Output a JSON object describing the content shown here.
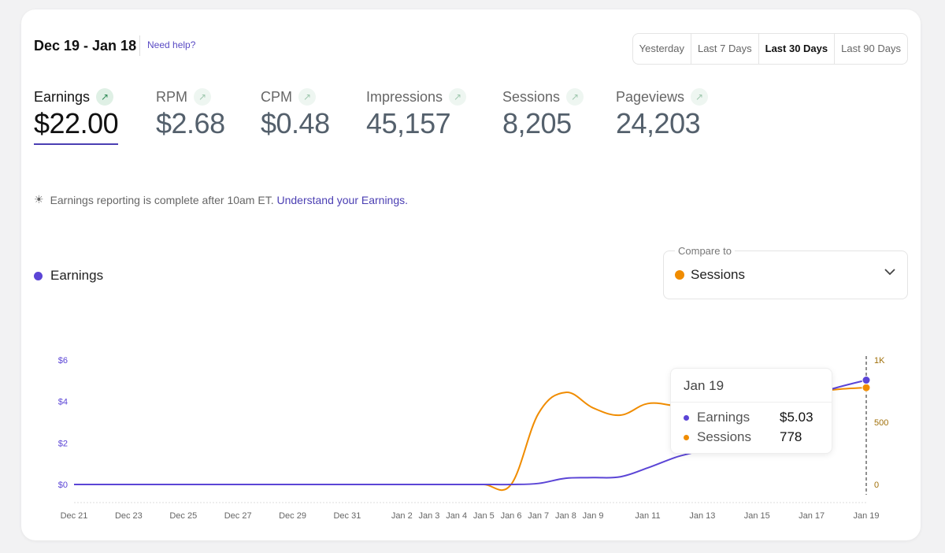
{
  "header": {
    "date_range": "Dec 19 - Jan 18",
    "help_link": "Need help?"
  },
  "periods": [
    {
      "label": "Yesterday",
      "active": false
    },
    {
      "label": "Last 7 Days",
      "active": false
    },
    {
      "label": "Last 30 Days",
      "active": true
    },
    {
      "label": "Last 90 Days",
      "active": false
    }
  ],
  "metrics": [
    {
      "label": "Earnings",
      "value": "$22.00",
      "active": true
    },
    {
      "label": "RPM",
      "value": "$2.68",
      "active": false
    },
    {
      "label": "CPM",
      "value": "$0.48",
      "active": false
    },
    {
      "label": "Impressions",
      "value": "45,157",
      "active": false
    },
    {
      "label": "Sessions",
      "value": "8,205",
      "active": false
    },
    {
      "label": "Pageviews",
      "value": "24,203",
      "active": false
    }
  ],
  "note": {
    "text": "Earnings reporting is complete after 10am ET.",
    "link": "Understand your Earnings."
  },
  "legend": {
    "label": "Earnings"
  },
  "compare": {
    "label": "Compare to",
    "value": "Sessions"
  },
  "colors": {
    "earnings": "#5b45d6",
    "sessions": "#f08c00",
    "accent": "#4b3fb3"
  },
  "tooltip": {
    "date": "Jan 19",
    "rows": [
      {
        "label": "Earnings",
        "value": "$5.03"
      },
      {
        "label": "Sessions",
        "value": "778"
      }
    ]
  },
  "chart_data": {
    "type": "line",
    "x": [
      "Dec 21",
      "Dec 22",
      "Dec 23",
      "Dec 24",
      "Dec 25",
      "Dec 26",
      "Dec 27",
      "Dec 28",
      "Dec 29",
      "Dec 30",
      "Dec 31",
      "Jan 1",
      "Jan 2",
      "Jan 3",
      "Jan 4",
      "Jan 5",
      "Jan 6",
      "Jan 7",
      "Jan 8",
      "Jan 9",
      "Jan 10",
      "Jan 11",
      "Jan 12",
      "Jan 13",
      "Jan 14",
      "Jan 15",
      "Jan 16",
      "Jan 17",
      "Jan 18",
      "Jan 19"
    ],
    "x_tick_labels": [
      "Dec 21",
      "Dec 23",
      "Dec 25",
      "Dec 27",
      "Dec 29",
      "Dec 31",
      "Jan 2",
      "Jan 3",
      "Jan 4",
      "Jan 5",
      "Jan 6",
      "Jan 7",
      "Jan 8",
      "Jan 9",
      "Jan 11",
      "Jan 13",
      "Jan 15",
      "Jan 17",
      "Jan 19"
    ],
    "y_left": {
      "ticks": [
        "$0",
        "$2",
        "$4",
        "$6"
      ],
      "range": [
        0,
        6
      ]
    },
    "y_right": {
      "ticks": [
        "0",
        "500",
        "1K"
      ],
      "range": [
        0,
        1000
      ]
    },
    "series": [
      {
        "name": "Earnings",
        "axis": "left",
        "values": [
          0,
          0,
          0,
          0,
          0,
          0,
          0,
          0,
          0,
          0,
          0,
          0,
          0,
          0,
          0,
          0,
          0,
          0.05,
          0.3,
          0.33,
          0.37,
          0.8,
          1.3,
          1.7,
          2.5,
          3.2,
          3.8,
          4.3,
          4.7,
          5.03
        ]
      },
      {
        "name": "Sessions",
        "axis": "right",
        "values": [
          0,
          0,
          0,
          0,
          0,
          0,
          0,
          0,
          0,
          0,
          0,
          0,
          0,
          0,
          0,
          0,
          0,
          570,
          740,
          615,
          557,
          650,
          633,
          614,
          630,
          660,
          700,
          740,
          765,
          778
        ]
      }
    ]
  }
}
